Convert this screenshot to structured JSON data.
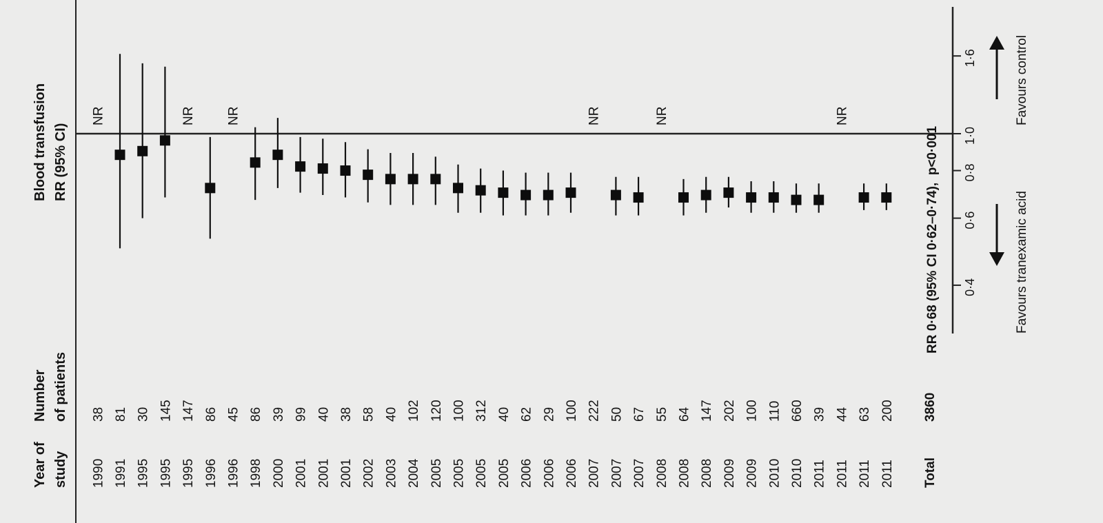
{
  "chart_data": {
    "type": "forest",
    "orientation": "rotated-90",
    "headers": {
      "year_line1": "Year of",
      "year_line2": "study",
      "patients_line1": "Number",
      "patients_line2": "of patients",
      "rr_line1": "Blood transfusion",
      "rr_line2": "RR (95% CI)"
    },
    "rows": [
      {
        "year": "1990",
        "n": "38",
        "rr": null,
        "lo": null,
        "hi": null,
        "nr": "NR"
      },
      {
        "year": "1991",
        "n": "81",
        "rr": 0.88,
        "lo": 0.5,
        "hi": 1.62
      },
      {
        "year": "1995",
        "n": "30",
        "rr": 0.9,
        "lo": 0.6,
        "hi": 1.53
      },
      {
        "year": "1995",
        "n": "145",
        "rr": 0.96,
        "lo": 0.68,
        "hi": 1.5
      },
      {
        "year": "1995",
        "n": "147",
        "rr": null,
        "lo": null,
        "hi": null,
        "nr": "NR"
      },
      {
        "year": "1996",
        "n": "86",
        "rr": 0.72,
        "lo": 0.53,
        "hi": 0.98
      },
      {
        "year": "1996",
        "n": "45",
        "rr": null,
        "lo": null,
        "hi": null,
        "nr": "NR"
      },
      {
        "year": "1998",
        "n": "86",
        "rr": 0.84,
        "lo": 0.67,
        "hi": 1.04
      },
      {
        "year": "2000",
        "n": "39",
        "rr": 0.88,
        "lo": 0.72,
        "hi": 1.1
      },
      {
        "year": "2001",
        "n": "99",
        "rr": 0.82,
        "lo": 0.7,
        "hi": 0.98
      },
      {
        "year": "2001",
        "n": "40",
        "rr": 0.81,
        "lo": 0.69,
        "hi": 0.97
      },
      {
        "year": "2001",
        "n": "38",
        "rr": 0.8,
        "lo": 0.68,
        "hi": 0.95
      },
      {
        "year": "2002",
        "n": "58",
        "rr": 0.78,
        "lo": 0.66,
        "hi": 0.91
      },
      {
        "year": "2003",
        "n": "40",
        "rr": 0.76,
        "lo": 0.65,
        "hi": 0.89
      },
      {
        "year": "2004",
        "n": "102",
        "rr": 0.76,
        "lo": 0.65,
        "hi": 0.89
      },
      {
        "year": "2005",
        "n": "120",
        "rr": 0.76,
        "lo": 0.65,
        "hi": 0.87
      },
      {
        "year": "2005",
        "n": "100",
        "rr": 0.72,
        "lo": 0.62,
        "hi": 0.83
      },
      {
        "year": "2005",
        "n": "312",
        "rr": 0.71,
        "lo": 0.62,
        "hi": 0.81
      },
      {
        "year": "2005",
        "n": "40",
        "rr": 0.7,
        "lo": 0.61,
        "hi": 0.8
      },
      {
        "year": "2006",
        "n": "62",
        "rr": 0.69,
        "lo": 0.61,
        "hi": 0.79
      },
      {
        "year": "2006",
        "n": "29",
        "rr": 0.69,
        "lo": 0.61,
        "hi": 0.79
      },
      {
        "year": "2006",
        "n": "100",
        "rr": 0.7,
        "lo": 0.62,
        "hi": 0.79
      },
      {
        "year": "2007",
        "n": "222",
        "rr": null,
        "lo": null,
        "hi": null,
        "nr": "NR"
      },
      {
        "year": "2007",
        "n": "50",
        "rr": 0.69,
        "lo": 0.61,
        "hi": 0.77
      },
      {
        "year": "2007",
        "n": "67",
        "rr": 0.68,
        "lo": 0.61,
        "hi": 0.77
      },
      {
        "year": "2008",
        "n": "55",
        "rr": null,
        "lo": null,
        "hi": null,
        "nr": "NR"
      },
      {
        "year": "2008",
        "n": "64",
        "rr": 0.68,
        "lo": 0.61,
        "hi": 0.76
      },
      {
        "year": "2008",
        "n": "147",
        "rr": 0.69,
        "lo": 0.62,
        "hi": 0.77
      },
      {
        "year": "2009",
        "n": "202",
        "rr": 0.7,
        "lo": 0.64,
        "hi": 0.77
      },
      {
        "year": "2009",
        "n": "100",
        "rr": 0.68,
        "lo": 0.62,
        "hi": 0.75
      },
      {
        "year": "2010",
        "n": "110",
        "rr": 0.68,
        "lo": 0.62,
        "hi": 0.75
      },
      {
        "year": "2010",
        "n": "660",
        "rr": 0.67,
        "lo": 0.62,
        "hi": 0.74
      },
      {
        "year": "2011",
        "n": "39",
        "rr": 0.67,
        "lo": 0.62,
        "hi": 0.74
      },
      {
        "year": "2011",
        "n": "44",
        "rr": null,
        "lo": null,
        "hi": null,
        "nr": "NR"
      },
      {
        "year": "2011",
        "n": "63",
        "rr": 0.68,
        "lo": 0.63,
        "hi": 0.74
      },
      {
        "year": "2011",
        "n": "200",
        "rr": 0.68,
        "lo": 0.63,
        "hi": 0.74
      }
    ],
    "total": {
      "label": "Total",
      "n": "3860"
    },
    "summary_text": "RR 0·68 (95% CI 0·62–0·74),  p<0·001",
    "axis": {
      "scale": "log",
      "range": [
        0.25,
        2.3
      ],
      "reference_value": 1.0,
      "ticks": [
        0.4,
        0.6,
        0.8,
        1.0,
        1.6
      ],
      "tick_labels": [
        "0·4",
        "0·6",
        "0·8",
        "1·0",
        "1·6"
      ]
    },
    "annotations": {
      "favours_control": "Favours control",
      "favours_treatment": "Favours tranexamic acid"
    }
  }
}
